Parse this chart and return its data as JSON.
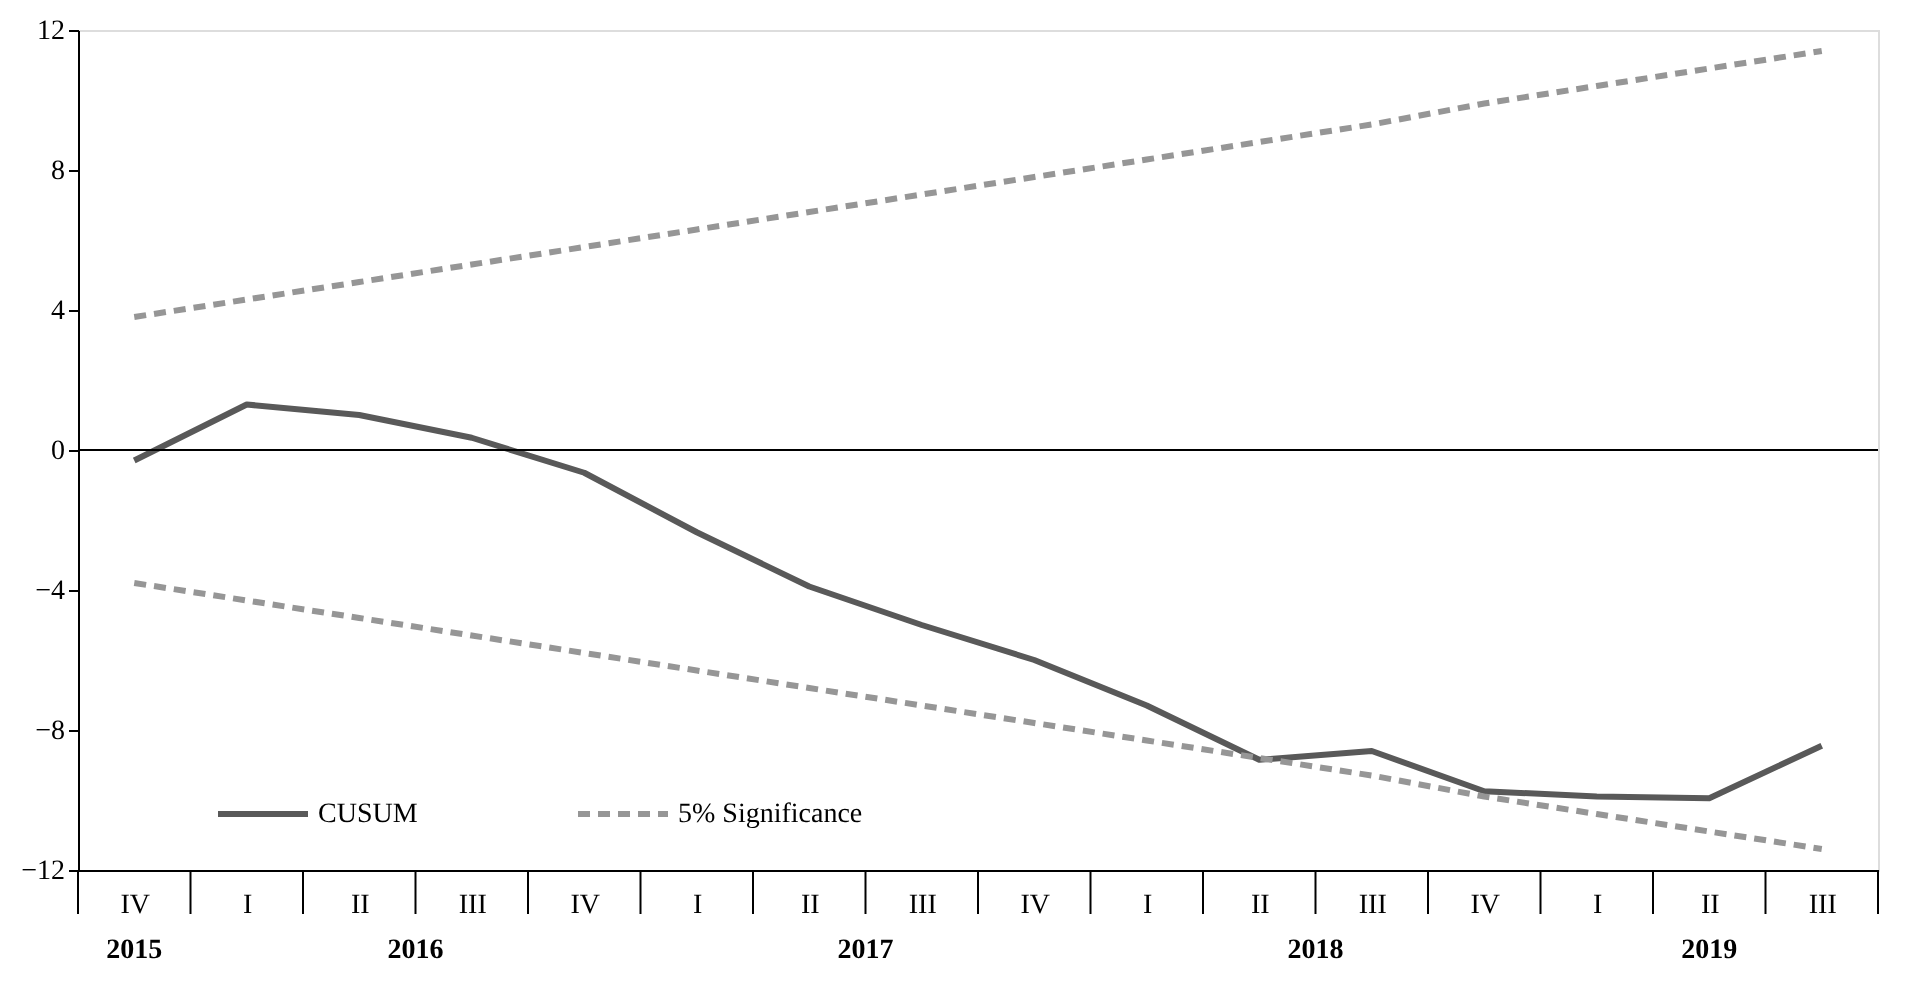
{
  "chart_data": {
    "type": "line",
    "categories": [
      "IV",
      "I",
      "II",
      "III",
      "IV",
      "I",
      "II",
      "III",
      "IV",
      "I",
      "II",
      "III",
      "IV",
      "I",
      "II",
      "III"
    ],
    "series": [
      {
        "name": "CUSUM",
        "color": "#595959",
        "line_style": "solid",
        "values": [
          -0.3,
          1.3,
          1.0,
          0.35,
          -0.65,
          -2.35,
          -3.9,
          -5.0,
          -6.0,
          -7.3,
          -8.85,
          -8.6,
          -9.75,
          -9.9,
          -9.95,
          -8.45
        ]
      },
      {
        "name": "5% Significance",
        "color": "#969696",
        "line_style": "dashed",
        "values": [
          3.8,
          4.3,
          4.8,
          5.3,
          5.8,
          6.3,
          6.8,
          7.3,
          7.8,
          8.3,
          8.8,
          9.3,
          9.9,
          10.4,
          10.9,
          11.4
        ]
      },
      {
        "color": "#969696",
        "line_style": "dashed",
        "values": [
          -3.8,
          -4.3,
          -4.8,
          -5.3,
          -5.8,
          -6.3,
          -6.8,
          -7.3,
          -7.8,
          -8.3,
          -8.8,
          -9.3,
          -9.9,
          -10.4,
          -10.9,
          -11.4
        ]
      }
    ],
    "ylim": [
      -12,
      12
    ],
    "yticks": [
      -12,
      -8,
      -4,
      0,
      4,
      8,
      12
    ],
    "ref_lines": [
      {
        "axis": "y",
        "value": 0,
        "color": "#000000",
        "line_style": "solid"
      }
    ],
    "annotations": [
      "2015",
      "2016",
      "2017",
      "2018",
      "2019"
    ],
    "grid": false,
    "legend": "bottom left",
    "marker": "none"
  }
}
